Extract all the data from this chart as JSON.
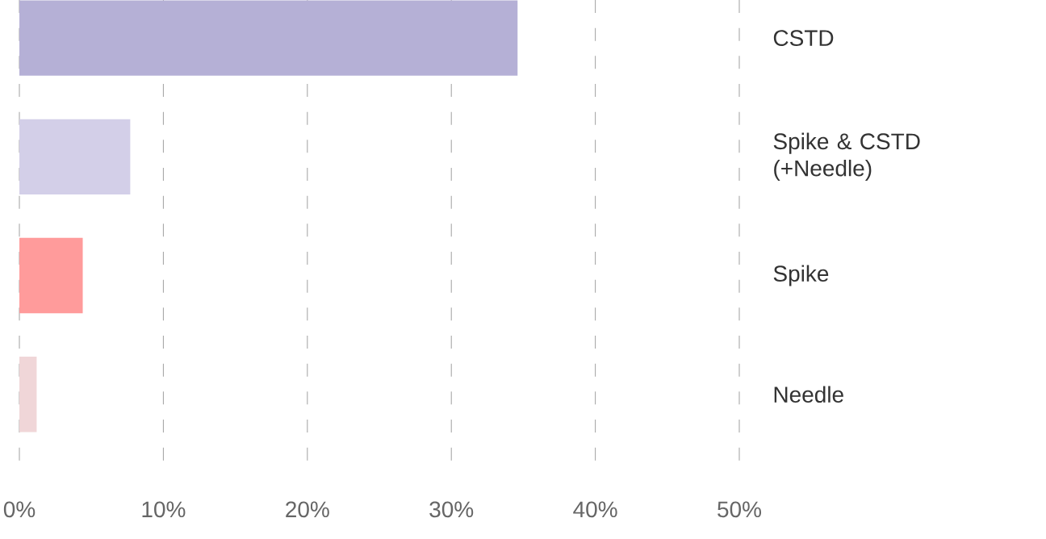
{
  "chart_data": {
    "type": "bar",
    "orientation": "horizontal",
    "categories": [
      "CSTD",
      "Spike & CSTD (+Needle)",
      "Spike",
      "Needle"
    ],
    "values": [
      34.6,
      7.7,
      4.4,
      1.2
    ],
    "colors": [
      "#b5b0d6",
      "#d3cfe8",
      "#ff9b9b",
      "#f0d6d8"
    ],
    "xlim": [
      0,
      50
    ],
    "xticks": [
      {
        "value": 0,
        "label": "0%"
      },
      {
        "value": 10,
        "label": "10%"
      },
      {
        "value": 20,
        "label": "20%"
      },
      {
        "value": 30,
        "label": "30%"
      },
      {
        "value": 40,
        "label": "40%"
      },
      {
        "value": 50,
        "label": "50%"
      }
    ],
    "grid": "x"
  }
}
